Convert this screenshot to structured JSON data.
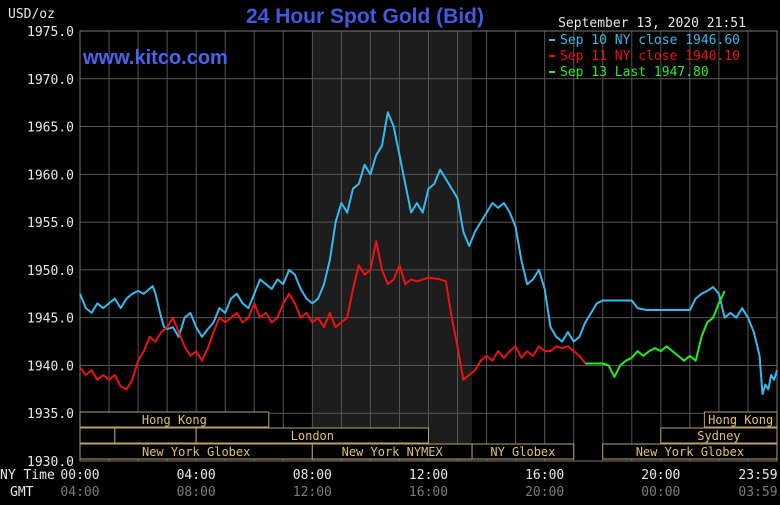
{
  "chart_data": {
    "type": "line",
    "title": "24 Hour Spot Gold (Bid)",
    "watermark": "www.kitco.com",
    "ylabel": "USD/oz",
    "timestamp": "September 13, 2020 21:51",
    "ylim": [
      1930,
      1975
    ],
    "y_ticks": [
      "1975.0",
      "1970.0",
      "1965.0",
      "1960.0",
      "1955.0",
      "1950.0",
      "1945.0",
      "1940.0",
      "1935.0",
      "1930.0"
    ],
    "x_axis_label_top": "NY Time",
    "x_axis_label_bottom": "GMT",
    "x_ticks_ny": [
      "00:00",
      "04:00",
      "08:00",
      "12:00",
      "16:00",
      "20:00",
      "23:59"
    ],
    "x_ticks_gmt": [
      "04:00",
      "08:00",
      "12:00",
      "16:00",
      "20:00",
      "00:00",
      "03:59"
    ],
    "xlim_hours": [
      0,
      24
    ],
    "grid": true,
    "legend_position": "top-right",
    "highlight_region_hours": [
      8.0,
      13.5
    ],
    "series": [
      {
        "name": "Sep 10 NY close 1946.60",
        "color": "#33bbee",
        "points": [
          [
            0.0,
            1947.5
          ],
          [
            0.2,
            1946.0
          ],
          [
            0.4,
            1945.5
          ],
          [
            0.6,
            1946.5
          ],
          [
            0.8,
            1946.0
          ],
          [
            1.0,
            1946.5
          ],
          [
            1.2,
            1947.0
          ],
          [
            1.4,
            1946.0
          ],
          [
            1.6,
            1947.0
          ],
          [
            1.8,
            1947.5
          ],
          [
            2.0,
            1947.8
          ],
          [
            2.2,
            1947.5
          ],
          [
            2.5,
            1948.3
          ],
          [
            2.6,
            1947.5
          ],
          [
            2.8,
            1945.0
          ],
          [
            2.9,
            1944.0
          ],
          [
            3.0,
            1943.8
          ],
          [
            3.2,
            1944.0
          ],
          [
            3.4,
            1943.0
          ],
          [
            3.6,
            1945.0
          ],
          [
            3.8,
            1945.5
          ],
          [
            4.0,
            1944.0
          ],
          [
            4.2,
            1943.0
          ],
          [
            4.4,
            1943.8
          ],
          [
            4.6,
            1944.5
          ],
          [
            4.8,
            1946.0
          ],
          [
            5.0,
            1945.5
          ],
          [
            5.2,
            1947.0
          ],
          [
            5.4,
            1947.5
          ],
          [
            5.6,
            1946.5
          ],
          [
            5.8,
            1946.0
          ],
          [
            6.0,
            1947.5
          ],
          [
            6.2,
            1949.0
          ],
          [
            6.4,
            1948.5
          ],
          [
            6.6,
            1948.0
          ],
          [
            6.8,
            1949.0
          ],
          [
            7.0,
            1948.5
          ],
          [
            7.2,
            1950.0
          ],
          [
            7.4,
            1949.5
          ],
          [
            7.6,
            1948.0
          ],
          [
            7.8,
            1947.0
          ],
          [
            8.0,
            1946.5
          ],
          [
            8.2,
            1947.0
          ],
          [
            8.4,
            1948.5
          ],
          [
            8.6,
            1951.0
          ],
          [
            8.8,
            1955.0
          ],
          [
            9.0,
            1957.0
          ],
          [
            9.2,
            1956.0
          ],
          [
            9.4,
            1958.5
          ],
          [
            9.6,
            1959.0
          ],
          [
            9.8,
            1961.0
          ],
          [
            10.0,
            1960.0
          ],
          [
            10.2,
            1962.0
          ],
          [
            10.4,
            1963.0
          ],
          [
            10.6,
            1966.5
          ],
          [
            10.8,
            1965.0
          ],
          [
            11.0,
            1962.0
          ],
          [
            11.2,
            1959.0
          ],
          [
            11.4,
            1956.0
          ],
          [
            11.6,
            1957.0
          ],
          [
            11.8,
            1956.0
          ],
          [
            12.0,
            1958.5
          ],
          [
            12.2,
            1959.0
          ],
          [
            12.4,
            1960.5
          ],
          [
            12.6,
            1959.5
          ],
          [
            12.8,
            1958.5
          ],
          [
            13.0,
            1957.5
          ],
          [
            13.2,
            1954.0
          ],
          [
            13.4,
            1952.5
          ],
          [
            13.6,
            1954.0
          ],
          [
            13.8,
            1955.0
          ],
          [
            14.0,
            1956.0
          ],
          [
            14.2,
            1957.0
          ],
          [
            14.4,
            1956.5
          ],
          [
            14.6,
            1957.0
          ],
          [
            14.8,
            1956.0
          ],
          [
            15.0,
            1954.5
          ],
          [
            15.2,
            1951.0
          ],
          [
            15.4,
            1948.5
          ],
          [
            15.6,
            1949.0
          ],
          [
            15.8,
            1950.0
          ],
          [
            16.0,
            1948.0
          ],
          [
            16.2,
            1944.0
          ],
          [
            16.4,
            1943.0
          ],
          [
            16.6,
            1942.5
          ],
          [
            16.8,
            1943.5
          ],
          [
            17.0,
            1942.5
          ],
          [
            17.2,
            1943.0
          ],
          [
            17.4,
            1944.5
          ],
          [
            17.6,
            1945.5
          ],
          [
            17.8,
            1946.5
          ],
          [
            18.0,
            1946.8
          ],
          [
            18.5,
            1946.8
          ],
          [
            19.0,
            1946.8
          ],
          [
            19.2,
            1946.0
          ],
          [
            19.5,
            1945.8
          ],
          [
            20.0,
            1945.8
          ],
          [
            20.5,
            1945.8
          ],
          [
            21.0,
            1945.8
          ],
          [
            21.2,
            1947.0
          ],
          [
            21.4,
            1947.5
          ],
          [
            21.6,
            1947.8
          ],
          [
            21.8,
            1948.2
          ],
          [
            22.0,
            1947.5
          ],
          [
            22.2,
            1945.0
          ],
          [
            22.4,
            1945.5
          ],
          [
            22.6,
            1945.0
          ],
          [
            22.8,
            1946.0
          ],
          [
            23.0,
            1945.0
          ],
          [
            23.2,
            1943.5
          ],
          [
            23.4,
            1941.0
          ],
          [
            23.5,
            1937.0
          ],
          [
            23.6,
            1938.0
          ],
          [
            23.7,
            1937.5
          ],
          [
            23.8,
            1939.0
          ],
          [
            23.9,
            1938.5
          ],
          [
            24.0,
            1939.5
          ]
        ]
      },
      {
        "name": "Sep 11 NY close 1940.10",
        "color": "#ee1111",
        "points": [
          [
            0.0,
            1939.8
          ],
          [
            0.2,
            1939.0
          ],
          [
            0.4,
            1939.5
          ],
          [
            0.6,
            1938.5
          ],
          [
            0.8,
            1939.0
          ],
          [
            1.0,
            1938.5
          ],
          [
            1.2,
            1939.0
          ],
          [
            1.4,
            1937.8
          ],
          [
            1.6,
            1937.5
          ],
          [
            1.8,
            1938.5
          ],
          [
            2.0,
            1940.5
          ],
          [
            2.2,
            1941.5
          ],
          [
            2.4,
            1943.0
          ],
          [
            2.6,
            1942.5
          ],
          [
            2.8,
            1943.5
          ],
          [
            3.0,
            1944.0
          ],
          [
            3.2,
            1945.0
          ],
          [
            3.4,
            1943.5
          ],
          [
            3.6,
            1942.0
          ],
          [
            3.8,
            1941.0
          ],
          [
            4.0,
            1941.5
          ],
          [
            4.2,
            1940.5
          ],
          [
            4.4,
            1941.8
          ],
          [
            4.6,
            1943.5
          ],
          [
            4.8,
            1945.0
          ],
          [
            5.0,
            1944.5
          ],
          [
            5.2,
            1945.0
          ],
          [
            5.4,
            1945.5
          ],
          [
            5.6,
            1944.5
          ],
          [
            5.8,
            1945.0
          ],
          [
            6.0,
            1946.5
          ],
          [
            6.2,
            1945.0
          ],
          [
            6.4,
            1945.5
          ],
          [
            6.6,
            1944.5
          ],
          [
            6.8,
            1945.0
          ],
          [
            7.0,
            1946.5
          ],
          [
            7.2,
            1947.5
          ],
          [
            7.4,
            1946.5
          ],
          [
            7.6,
            1945.0
          ],
          [
            7.8,
            1945.5
          ],
          [
            8.0,
            1944.5
          ],
          [
            8.2,
            1945.0
          ],
          [
            8.4,
            1944.0
          ],
          [
            8.6,
            1945.5
          ],
          [
            8.8,
            1944.0
          ],
          [
            9.0,
            1944.5
          ],
          [
            9.2,
            1945.0
          ],
          [
            9.4,
            1948.0
          ],
          [
            9.6,
            1950.5
          ],
          [
            9.8,
            1949.5
          ],
          [
            10.0,
            1950.0
          ],
          [
            10.2,
            1953.0
          ],
          [
            10.4,
            1950.0
          ],
          [
            10.6,
            1948.5
          ],
          [
            10.8,
            1949.0
          ],
          [
            11.0,
            1950.5
          ],
          [
            11.2,
            1948.5
          ],
          [
            11.4,
            1949.0
          ],
          [
            11.6,
            1948.8
          ],
          [
            12.0,
            1949.2
          ],
          [
            12.4,
            1949.0
          ],
          [
            12.6,
            1948.8
          ],
          [
            12.8,
            1945.0
          ],
          [
            13.0,
            1942.0
          ],
          [
            13.2,
            1938.5
          ],
          [
            13.4,
            1939.0
          ],
          [
            13.6,
            1939.5
          ],
          [
            13.8,
            1940.5
          ],
          [
            14.0,
            1941.0
          ],
          [
            14.2,
            1940.5
          ],
          [
            14.4,
            1941.5
          ],
          [
            14.6,
            1940.8
          ],
          [
            14.8,
            1941.5
          ],
          [
            15.0,
            1942.0
          ],
          [
            15.2,
            1940.8
          ],
          [
            15.4,
            1941.5
          ],
          [
            15.6,
            1941.0
          ],
          [
            15.8,
            1942.0
          ],
          [
            16.0,
            1941.5
          ],
          [
            16.2,
            1941.5
          ],
          [
            16.4,
            1942.0
          ],
          [
            16.6,
            1941.8
          ],
          [
            16.8,
            1942.0
          ],
          [
            17.0,
            1941.5
          ],
          [
            17.2,
            1941.0
          ],
          [
            17.4,
            1940.2
          ]
        ]
      },
      {
        "name": "Sep 13 Last 1947.80",
        "color": "#22ee22",
        "points": [
          [
            17.4,
            1940.2
          ],
          [
            17.8,
            1940.2
          ],
          [
            18.0,
            1940.2
          ],
          [
            18.2,
            1940.0
          ],
          [
            18.4,
            1938.8
          ],
          [
            18.6,
            1940.0
          ],
          [
            18.8,
            1940.5
          ],
          [
            19.0,
            1940.8
          ],
          [
            19.2,
            1941.5
          ],
          [
            19.4,
            1941.0
          ],
          [
            19.6,
            1941.5
          ],
          [
            19.8,
            1941.8
          ],
          [
            20.0,
            1941.5
          ],
          [
            20.2,
            1942.0
          ],
          [
            20.4,
            1941.5
          ],
          [
            20.6,
            1941.0
          ],
          [
            20.8,
            1940.5
          ],
          [
            21.0,
            1941.0
          ],
          [
            21.2,
            1940.5
          ],
          [
            21.4,
            1943.0
          ],
          [
            21.6,
            1944.5
          ],
          [
            21.8,
            1945.0
          ],
          [
            22.0,
            1946.5
          ],
          [
            22.2,
            1947.8
          ]
        ]
      }
    ],
    "session_rows": [
      [
        {
          "label": "Hong Kong",
          "start": 0.0,
          "end": 6.5
        },
        {
          "label": "Hong Kong",
          "start": 21.5,
          "end": 24.0
        }
      ],
      [
        {
          "label": "",
          "start": 0.0,
          "end": 1.2
        },
        {
          "label": "",
          "start": 1.2,
          "end": 4.0
        },
        {
          "label": "London",
          "start": 4.0,
          "end": 12.0
        },
        {
          "label": "Sydney",
          "start": 20.0,
          "end": 24.0
        }
      ],
      [
        {
          "label": "New York Globex",
          "start": 0.0,
          "end": 8.0
        },
        {
          "label": "New York NYMEX",
          "start": 8.0,
          "end": 13.5
        },
        {
          "label": "NY Globex",
          "start": 13.5,
          "end": 17.0
        },
        {
          "label": "New York Globex",
          "start": 18.0,
          "end": 24.0
        }
      ]
    ]
  }
}
